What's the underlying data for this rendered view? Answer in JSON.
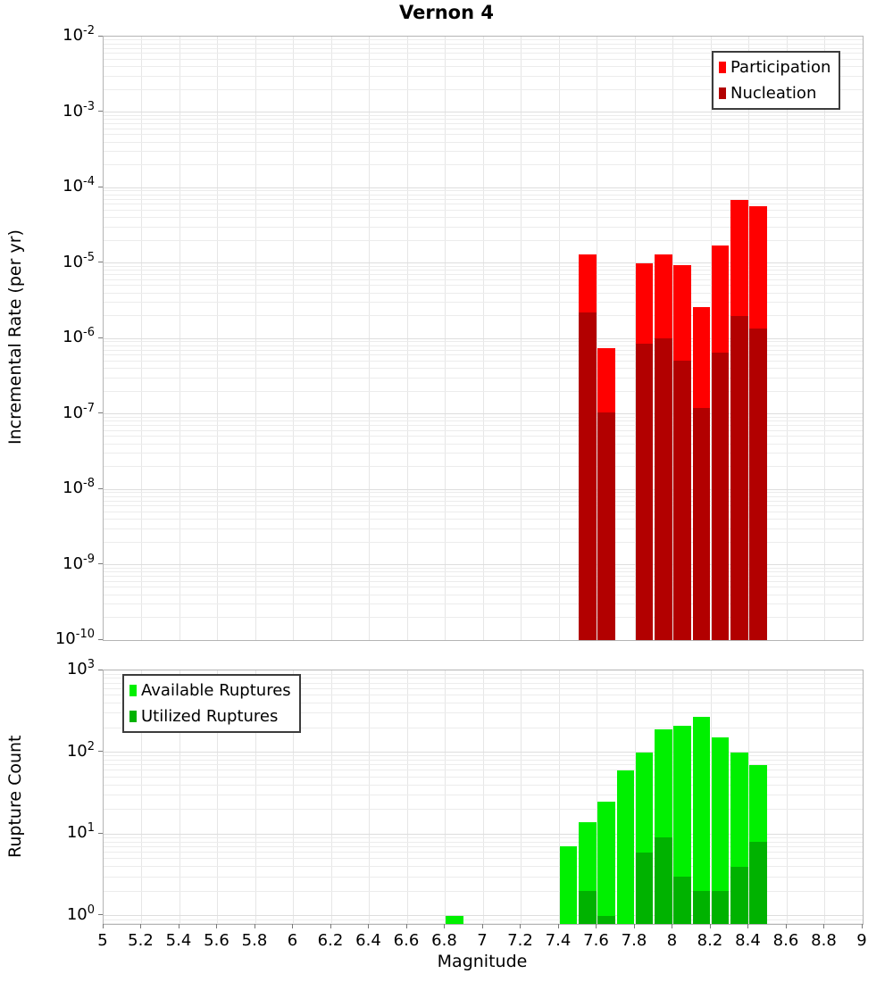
{
  "title": "Vernon 4",
  "chart_data": [
    {
      "id": "incremental-rate",
      "type": "bar",
      "title": "Vernon 4",
      "ylabel": "Incremental Rate (per yr)",
      "yscale": "log",
      "ylim": [
        1e-10,
        0.01
      ],
      "xlim": [
        5,
        9
      ],
      "bar_bin_width": 0.1,
      "grid": true,
      "legend_position": "top-right",
      "y_tick_exponents": [
        -2,
        -3,
        -4,
        -5,
        -6,
        -7,
        -8,
        -9,
        -10
      ],
      "x": [
        7.55,
        7.65,
        7.85,
        7.95,
        8.05,
        8.15,
        8.25,
        8.35,
        8.45
      ],
      "series": [
        {
          "name": "Participation",
          "color": "#ff0000",
          "values": [
            1.3e-05,
            7.5e-07,
            1e-05,
            1.3e-05,
            9.3e-06,
            2.6e-06,
            1.7e-05,
            6.8e-05,
            5.6e-05
          ]
        },
        {
          "name": "Nucleation",
          "color": "#b20000",
          "values": [
            2.2e-06,
            1.05e-07,
            8.5e-07,
            1e-06,
            5e-07,
            1.2e-07,
            6.4e-07,
            2e-06,
            1.35e-06
          ]
        }
      ]
    },
    {
      "id": "rupture-count",
      "type": "bar",
      "xlabel": "Magnitude",
      "ylabel": "Rupture Count",
      "yscale": "log",
      "ylim": [
        0.794,
        1000
      ],
      "xlim": [
        5,
        9
      ],
      "bar_bin_width": 0.1,
      "grid": true,
      "legend_position": "top-left",
      "y_tick_exponents": [
        3,
        2,
        1,
        0
      ],
      "x_ticks": [
        5,
        5.2,
        5.4,
        5.6,
        5.8,
        6,
        6.2,
        6.4,
        6.6,
        6.8,
        7,
        7.2,
        7.4,
        7.6,
        7.8,
        8,
        8.2,
        8.4,
        8.6,
        8.8,
        9
      ],
      "x_tick_labels": [
        "5",
        "5.2",
        "5.4",
        "5.6",
        "5.8",
        "6",
        "6.2",
        "6.4",
        "6.6",
        "6.8",
        "7",
        "7.2",
        "7.4",
        "7.6",
        "7.8",
        "8",
        "8.2",
        "8.4",
        "8.6",
        "8.8",
        "9"
      ],
      "x": [
        6.85,
        7.45,
        7.55,
        7.65,
        7.75,
        7.85,
        7.95,
        8.05,
        8.15,
        8.25,
        8.35,
        8.45
      ],
      "series": [
        {
          "name": "Available Ruptures",
          "color": "#00f000",
          "values": [
            1,
            7,
            14,
            25,
            60,
            100,
            190,
            210,
            270,
            150,
            100,
            70
          ]
        },
        {
          "name": "Utilized Ruptures",
          "color": "#00b200",
          "values": [
            0,
            0,
            2,
            1,
            0,
            6,
            9,
            3,
            2,
            2,
            4,
            8
          ]
        }
      ]
    }
  ]
}
